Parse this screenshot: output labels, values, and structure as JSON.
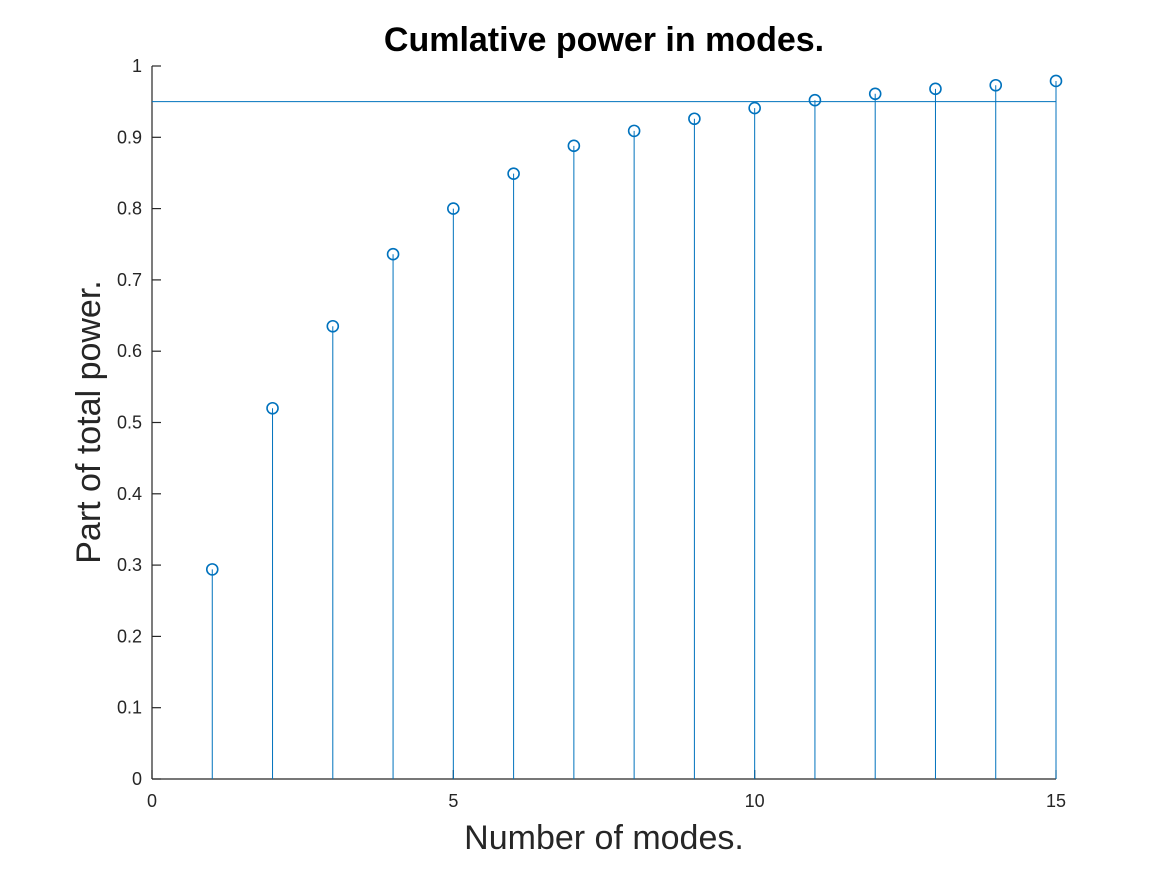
{
  "chart_data": {
    "type": "stem",
    "title": "Cumlative power in modes.",
    "xlabel": "Number of modes.",
    "ylabel": "Part of total power.",
    "xlim": [
      0,
      15
    ],
    "ylim": [
      0,
      1
    ],
    "xticks": [
      0,
      5,
      10,
      15
    ],
    "yticks": [
      0,
      0.1,
      0.2,
      0.3,
      0.4,
      0.5,
      0.6,
      0.7,
      0.8,
      0.9,
      1
    ],
    "xtick_labels": [
      "0",
      "5",
      "10",
      "15"
    ],
    "ytick_labels": [
      "0",
      "0.1",
      "0.2",
      "0.3",
      "0.4",
      "0.5",
      "0.6",
      "0.7",
      "0.8",
      "0.9",
      "1"
    ],
    "grid": false,
    "x": [
      1,
      2,
      3,
      4,
      5,
      6,
      7,
      8,
      9,
      10,
      11,
      12,
      13,
      14,
      15
    ],
    "values": [
      0.294,
      0.52,
      0.635,
      0.736,
      0.8,
      0.849,
      0.888,
      0.909,
      0.926,
      0.941,
      0.952,
      0.961,
      0.968,
      0.973,
      0.979
    ],
    "reference_line": {
      "orientation": "horizontal",
      "y": 0.95,
      "x_range": [
        0,
        15
      ]
    },
    "series_color": "#0072BD",
    "marker": "circle"
  }
}
